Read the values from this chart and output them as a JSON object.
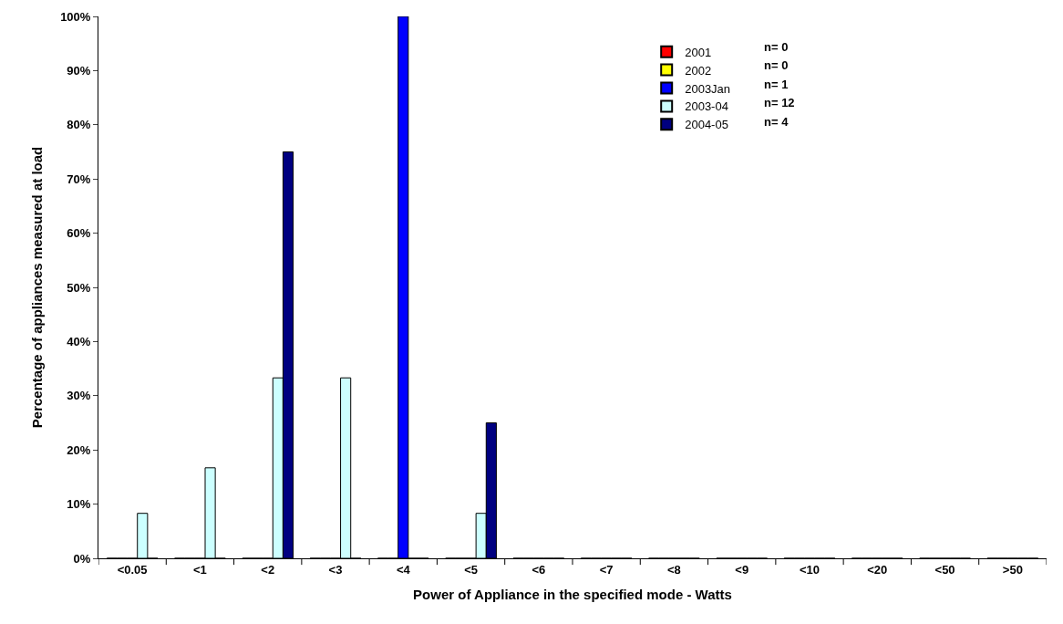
{
  "chart_data": {
    "type": "bar",
    "xlabel": "Power of Appliance in the specified mode - Watts",
    "ylabel": "Percentage of appliances measured at load",
    "categories": [
      "<0.05",
      "<1",
      "<2",
      "<3",
      "<4",
      "<5",
      "<6",
      "<7",
      "<8",
      "<9",
      "<10",
      "<20",
      "<50",
      ">50"
    ],
    "series": [
      {
        "name": "2001",
        "color": "#ff0000",
        "values": [
          0,
          0,
          0,
          0,
          0,
          0,
          0,
          0,
          0,
          0,
          0,
          0,
          0,
          0
        ]
      },
      {
        "name": "2002",
        "color": "#ffff00",
        "values": [
          0,
          0,
          0,
          0,
          0,
          0,
          0,
          0,
          0,
          0,
          0,
          0,
          0,
          0
        ]
      },
      {
        "name": "2003Jan",
        "color": "#0000ff",
        "values": [
          0,
          0,
          0,
          0,
          100,
          0,
          0,
          0,
          0,
          0,
          0,
          0,
          0,
          0
        ]
      },
      {
        "name": "2003-04",
        "color": "#ccffff",
        "values": [
          8.3,
          16.7,
          33.3,
          33.3,
          0,
          8.3,
          0,
          0,
          0,
          0,
          0,
          0,
          0,
          0
        ]
      },
      {
        "name": "2004-05",
        "color": "#000080",
        "values": [
          0,
          0,
          75,
          0,
          0,
          25,
          0,
          0,
          0,
          0,
          0,
          0,
          0,
          0
        ]
      }
    ],
    "annotations": [
      "n= 0",
      "n= 0",
      "n= 1",
      "n= 12",
      "n= 4"
    ],
    "ylim": [
      0,
      100
    ],
    "yticks": [
      {
        "value": 0,
        "label": "0%"
      },
      {
        "value": 10,
        "label": "10%"
      },
      {
        "value": 20,
        "label": "20%"
      },
      {
        "value": 30,
        "label": "30%"
      },
      {
        "value": 40,
        "label": "40%"
      },
      {
        "value": 50,
        "label": "50%"
      },
      {
        "value": 60,
        "label": "60%"
      },
      {
        "value": 70,
        "label": "70%"
      },
      {
        "value": 80,
        "label": "80%"
      },
      {
        "value": 90,
        "label": "90%"
      },
      {
        "value": 100,
        "label": "100%"
      }
    ],
    "grid": false,
    "legend": "top"
  }
}
